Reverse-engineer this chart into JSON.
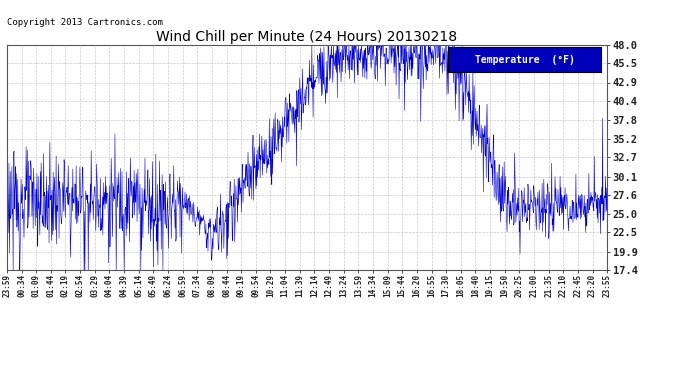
{
  "title": "Wind Chill per Minute (24 Hours) 20130218",
  "copyright": "Copyright 2013 Cartronics.com",
  "legend_label": "Temperature  (°F)",
  "line_color": "#0000cc",
  "background_color": "#ffffff",
  "grid_color": "#bbbbbb",
  "yticks": [
    17.4,
    19.9,
    22.5,
    25.0,
    27.6,
    30.1,
    32.7,
    35.2,
    37.8,
    40.4,
    42.9,
    45.5,
    48.0
  ],
  "ylim": [
    17.4,
    48.0
  ],
  "xtick_labels": [
    "23:59",
    "00:34",
    "01:09",
    "01:44",
    "02:19",
    "02:54",
    "03:29",
    "04:04",
    "04:39",
    "05:14",
    "05:49",
    "06:24",
    "06:59",
    "07:34",
    "08:09",
    "08:44",
    "09:19",
    "09:54",
    "10:29",
    "11:04",
    "11:39",
    "12:14",
    "12:49",
    "13:24",
    "13:59",
    "14:34",
    "15:09",
    "15:44",
    "16:20",
    "16:55",
    "17:30",
    "18:05",
    "18:40",
    "19:15",
    "19:50",
    "20:25",
    "21:00",
    "21:35",
    "22:10",
    "22:45",
    "23:20",
    "23:55"
  ],
  "n_points": 1440
}
